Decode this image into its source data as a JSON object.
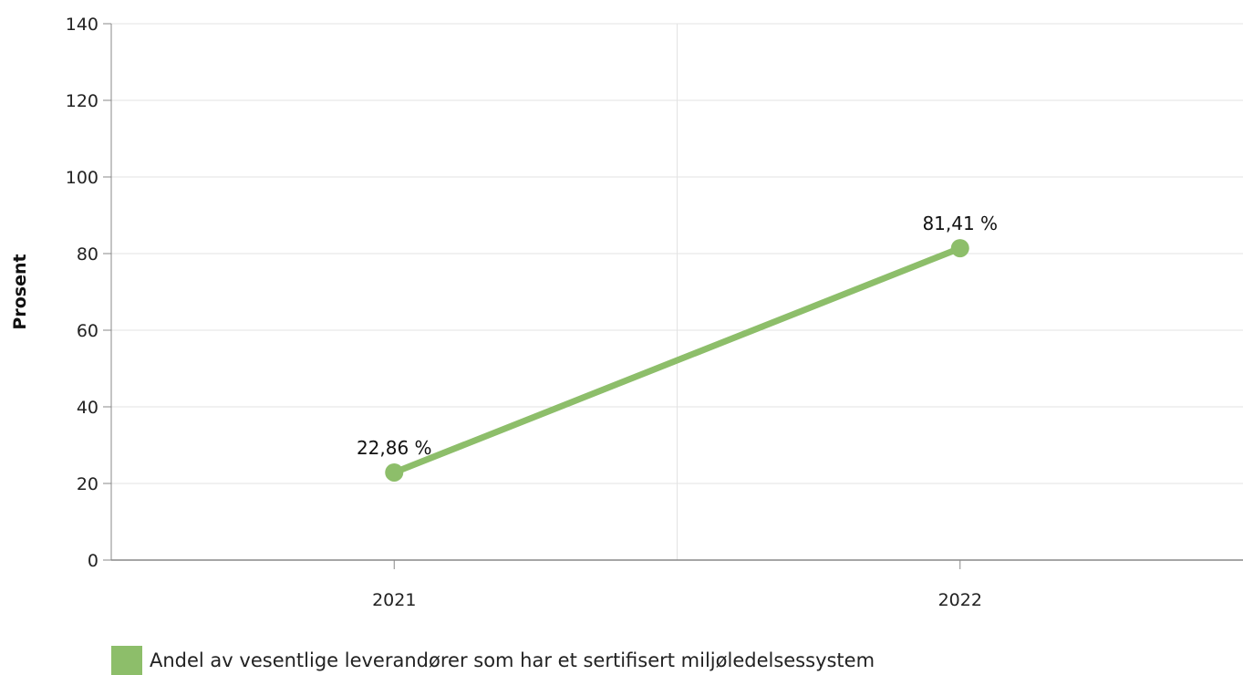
{
  "chart_data": {
    "type": "line",
    "categories": [
      "2021",
      "2022"
    ],
    "series": [
      {
        "name": "Andel av vesentlige leverandører som har et sertifisert miljøledelsessystem",
        "values": [
          22.86,
          81.41
        ],
        "labels": [
          "22,86 %",
          "81,41 %"
        ],
        "color": "#8dbe6a"
      }
    ],
    "ylabel": "Prosent",
    "xlabel": "",
    "ylim": [
      0,
      140
    ],
    "yticks": [
      0,
      20,
      40,
      60,
      80,
      100,
      120,
      140
    ],
    "grid": true,
    "legend_position": "bottom-left"
  }
}
